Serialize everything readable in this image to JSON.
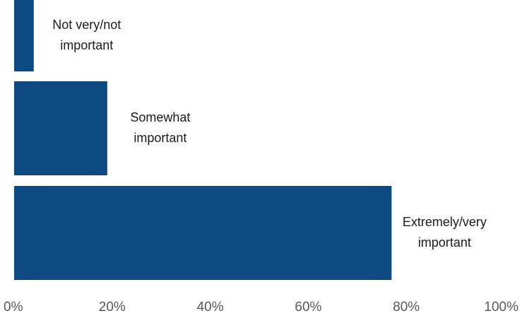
{
  "chart_data": {
    "type": "bar",
    "orientation": "horizontal",
    "categories": [
      "Not very/not important",
      "Somewhat important",
      "Extremely/very important"
    ],
    "category_label_lines": [
      [
        "Not very/not",
        "important"
      ],
      [
        "Somewhat",
        "important"
      ],
      [
        "Extremely/very",
        "important"
      ]
    ],
    "values": [
      4,
      19,
      77
    ],
    "xlim": [
      0,
      100
    ],
    "x_ticks": [
      0,
      20,
      40,
      60,
      80,
      100
    ],
    "x_tick_labels": [
      "0%",
      "20%",
      "40%",
      "60%",
      "80%",
      "100%"
    ],
    "grid": false,
    "legend": "none",
    "bar_color": "#0d4a84"
  }
}
